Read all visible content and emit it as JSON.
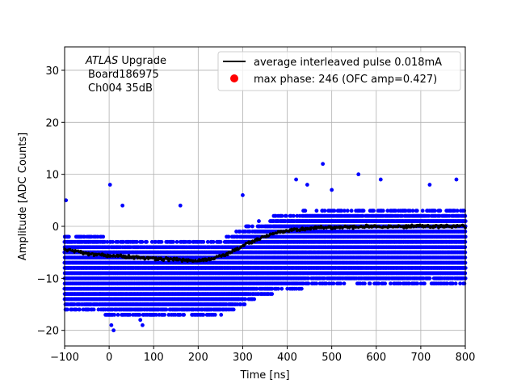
{
  "chart_data": {
    "type": "scatter",
    "xlabel": "Time [ns]",
    "ylabel": "Amplitude [ADC Counts]",
    "xlim": [
      -100,
      800
    ],
    "ylim": [
      -23,
      34.5
    ],
    "xticks": [
      -100,
      0,
      100,
      200,
      300,
      400,
      500,
      600,
      700,
      800
    ],
    "yticks": [
      -20,
      -10,
      0,
      10,
      20,
      30
    ],
    "grid": true,
    "legend_placement": "top-right",
    "annotation": {
      "italic": "ATLAS",
      "rest": " Upgrade",
      "line2": "Board186975",
      "line3": "Ch004 35dB"
    },
    "series": [
      {
        "name": "average interleaved pulse 0.018mA",
        "kind": "line",
        "color": "#000000",
        "x": [
          -100,
          -50,
          0,
          50,
          100,
          150,
          200,
          230,
          260,
          300,
          340,
          380,
          420,
          460,
          500,
          550,
          600,
          650,
          700,
          750,
          800
        ],
        "y": [
          -4.5,
          -5.2,
          -5.6,
          -5.9,
          -6.2,
          -6.4,
          -6.5,
          -6.3,
          -5.5,
          -3.8,
          -2.2,
          -1.2,
          -0.6,
          -0.3,
          -0.2,
          -0.1,
          0.0,
          0.0,
          0.0,
          0.0,
          0.0
        ]
      },
      {
        "name": "max phase: 246 (OFC amp=0.427)",
        "kind": "marker",
        "color": "#ff0000",
        "x": [],
        "y": []
      },
      {
        "name": "",
        "kind": "scatter",
        "color": "#0000ff",
        "spread_y": [
          -11,
          3
        ],
        "outliers": [
          {
            "x": -98,
            "y": -13
          },
          {
            "x": -97,
            "y": 5
          },
          {
            "x": -50,
            "y": -16
          },
          {
            "x": -20,
            "y": -13
          },
          {
            "x": 2,
            "y": 8
          },
          {
            "x": 5,
            "y": -19
          },
          {
            "x": 10,
            "y": -20
          },
          {
            "x": 30,
            "y": 4
          },
          {
            "x": 70,
            "y": -18
          },
          {
            "x": 75,
            "y": -19
          },
          {
            "x": 120,
            "y": -17
          },
          {
            "x": 160,
            "y": 4
          },
          {
            "x": 220,
            "y": -16
          },
          {
            "x": 290,
            "y": -14
          },
          {
            "x": 300,
            "y": 6
          },
          {
            "x": 380,
            "y": -12
          },
          {
            "x": 420,
            "y": 9
          },
          {
            "x": 445,
            "y": 8
          },
          {
            "x": 480,
            "y": 12
          },
          {
            "x": 500,
            "y": 7
          },
          {
            "x": 560,
            "y": 10
          },
          {
            "x": 610,
            "y": 9
          },
          {
            "x": 650,
            "y": -10
          },
          {
            "x": 720,
            "y": 8
          },
          {
            "x": 780,
            "y": 9
          },
          {
            "x": 790,
            "y": -10
          }
        ]
      }
    ]
  }
}
